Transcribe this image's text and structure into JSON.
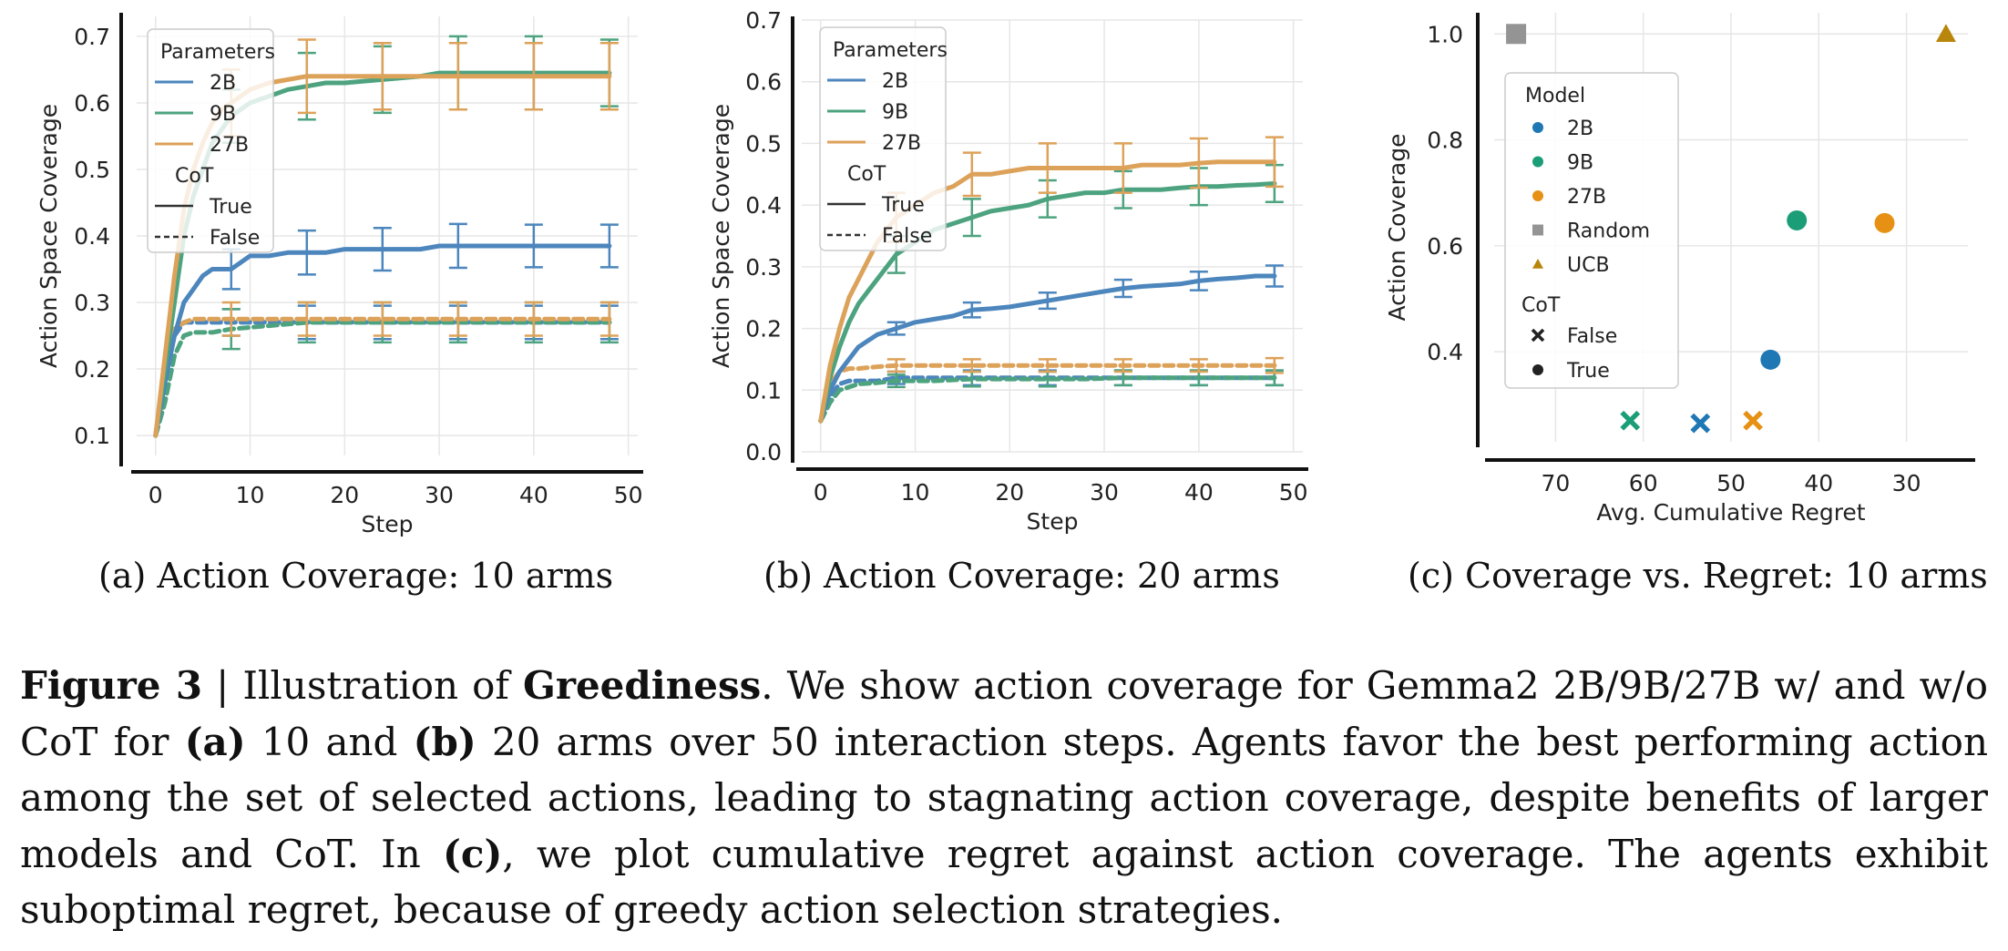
{
  "chart_data": [
    {
      "type": "line",
      "xlabel": "Step",
      "ylabel": "Action Space Coverage",
      "xlim": [
        -2,
        51
      ],
      "ylim": [
        0.07,
        0.73
      ],
      "xticks": [
        0,
        10,
        20,
        30,
        40,
        50
      ],
      "yticks": [
        0.1,
        0.2,
        0.3,
        0.4,
        0.5,
        0.6,
        0.7
      ],
      "grid": true,
      "legend": {
        "placement": "top-left",
        "title1": "Parameters",
        "entries": [
          "2B",
          "9B",
          "27B"
        ],
        "title2": "CoT",
        "styles": [
          "True",
          "False"
        ]
      },
      "series": [
        {
          "name": "2B",
          "cot": "True",
          "color": "#4C86BD",
          "x": [
            0,
            1,
            2,
            3,
            4,
            5,
            6,
            7,
            8,
            10,
            12,
            14,
            16,
            18,
            20,
            24,
            28,
            30,
            32,
            36,
            40,
            44,
            48
          ],
          "y": [
            0.1,
            0.18,
            0.25,
            0.3,
            0.32,
            0.34,
            0.35,
            0.35,
            0.35,
            0.37,
            0.37,
            0.375,
            0.375,
            0.375,
            0.38,
            0.38,
            0.38,
            0.385,
            0.385,
            0.385,
            0.385,
            0.385,
            0.385
          ],
          "errors": [
            0,
            0,
            0,
            0,
            0,
            0,
            0,
            0,
            0.03,
            0,
            0,
            0,
            0.033,
            0,
            0,
            0.032,
            0,
            0,
            0.033,
            0,
            0.032,
            0,
            0.032
          ]
        },
        {
          "name": "9B",
          "cot": "True",
          "color": "#4DA37F",
          "x": [
            0,
            1,
            2,
            3,
            4,
            5,
            6,
            7,
            8,
            10,
            12,
            14,
            16,
            18,
            20,
            24,
            28,
            30,
            32,
            36,
            40,
            44,
            48
          ],
          "y": [
            0.1,
            0.2,
            0.3,
            0.4,
            0.46,
            0.5,
            0.54,
            0.56,
            0.58,
            0.6,
            0.61,
            0.62,
            0.625,
            0.63,
            0.63,
            0.635,
            0.64,
            0.645,
            0.645,
            0.645,
            0.645,
            0.645,
            0.645
          ],
          "errors": [
            0,
            0,
            0,
            0,
            0,
            0,
            0,
            0,
            0.04,
            0,
            0,
            0,
            0.05,
            0,
            0,
            0.05,
            0,
            0,
            0.055,
            0,
            0.055,
            0,
            0.05
          ]
        },
        {
          "name": "27B",
          "cot": "True",
          "color": "#DDA25A",
          "x": [
            0,
            1,
            2,
            3,
            4,
            5,
            6,
            7,
            8,
            10,
            12,
            14,
            16,
            18,
            20,
            24,
            28,
            30,
            32,
            36,
            40,
            44,
            48
          ],
          "y": [
            0.1,
            0.22,
            0.34,
            0.44,
            0.5,
            0.54,
            0.57,
            0.59,
            0.6,
            0.62,
            0.63,
            0.635,
            0.64,
            0.64,
            0.64,
            0.64,
            0.64,
            0.64,
            0.64,
            0.64,
            0.64,
            0.64,
            0.64
          ],
          "errors": [
            0,
            0,
            0,
            0,
            0,
            0,
            0,
            0,
            0.05,
            0,
            0,
            0,
            0.055,
            0,
            0,
            0.05,
            0,
            0,
            0.05,
            0,
            0.05,
            0,
            0.05
          ]
        },
        {
          "name": "2B",
          "cot": "False",
          "color": "#4C86BD",
          "x": [
            0,
            1,
            2,
            3,
            4,
            6,
            8,
            12,
            16,
            20,
            24,
            28,
            32,
            36,
            40,
            44,
            48
          ],
          "y": [
            0.1,
            0.19,
            0.25,
            0.27,
            0.27,
            0.27,
            0.27,
            0.27,
            0.27,
            0.27,
            0.27,
            0.27,
            0.27,
            0.27,
            0.27,
            0.27,
            0.27
          ],
          "errors": [
            0,
            0,
            0,
            0,
            0,
            0,
            0.02,
            0,
            0.025,
            0,
            0.025,
            0,
            0.025,
            0,
            0.025,
            0,
            0.025
          ]
        },
        {
          "name": "9B",
          "cot": "False",
          "color": "#4DA37F",
          "x": [
            0,
            1,
            2,
            3,
            4,
            6,
            8,
            12,
            16,
            20,
            24,
            28,
            32,
            36,
            40,
            44,
            48
          ],
          "y": [
            0.1,
            0.15,
            0.22,
            0.25,
            0.255,
            0.255,
            0.26,
            0.265,
            0.27,
            0.27,
            0.27,
            0.27,
            0.27,
            0.27,
            0.27,
            0.27,
            0.27
          ],
          "errors": [
            0,
            0,
            0,
            0,
            0,
            0,
            0.03,
            0,
            0.03,
            0,
            0.03,
            0,
            0.03,
            0,
            0.03,
            0,
            0.03
          ]
        },
        {
          "name": "27B",
          "cot": "False",
          "color": "#DDA25A",
          "x": [
            0,
            1,
            2,
            3,
            4,
            6,
            8,
            12,
            16,
            20,
            24,
            28,
            32,
            36,
            40,
            44,
            48
          ],
          "y": [
            0.1,
            0.2,
            0.26,
            0.27,
            0.275,
            0.275,
            0.275,
            0.275,
            0.275,
            0.275,
            0.275,
            0.275,
            0.275,
            0.275,
            0.275,
            0.275,
            0.275
          ],
          "errors": [
            0,
            0,
            0,
            0,
            0,
            0,
            0.025,
            0,
            0.025,
            0,
            0.025,
            0,
            0.025,
            0,
            0.025,
            0,
            0.025
          ]
        }
      ]
    },
    {
      "type": "line",
      "xlabel": "Step",
      "ylabel": "Action Space Coverage",
      "xlim": [
        -2,
        51
      ],
      "ylim": [
        0.0,
        0.7
      ],
      "xticks": [
        0,
        10,
        20,
        30,
        40,
        50
      ],
      "yticks": [
        0.0,
        0.1,
        0.2,
        0.3,
        0.4,
        0.5,
        0.6,
        0.7
      ],
      "grid": true,
      "legend": {
        "placement": "top-left",
        "title1": "Parameters",
        "entries": [
          "2B",
          "9B",
          "27B"
        ],
        "title2": "CoT",
        "styles": [
          "True",
          "False"
        ]
      },
      "series": [
        {
          "name": "2B",
          "cot": "True",
          "color": "#4C86BD",
          "x": [
            0,
            1,
            2,
            3,
            4,
            5,
            6,
            7,
            8,
            10,
            12,
            14,
            16,
            18,
            20,
            22,
            24,
            26,
            28,
            30,
            32,
            34,
            36,
            38,
            40,
            42,
            44,
            46,
            48
          ],
          "y": [
            0.05,
            0.1,
            0.13,
            0.15,
            0.17,
            0.18,
            0.19,
            0.195,
            0.2,
            0.21,
            0.215,
            0.22,
            0.23,
            0.232,
            0.235,
            0.24,
            0.245,
            0.25,
            0.255,
            0.26,
            0.265,
            0.268,
            0.27,
            0.272,
            0.277,
            0.28,
            0.282,
            0.285,
            0.285
          ],
          "errors": [
            0,
            0,
            0,
            0,
            0,
            0,
            0,
            0,
            0.01,
            0,
            0,
            0,
            0.012,
            0,
            0,
            0,
            0.013,
            0,
            0,
            0,
            0.014,
            0,
            0,
            0,
            0.015,
            0,
            0,
            0,
            0.017
          ]
        },
        {
          "name": "9B",
          "cot": "True",
          "color": "#4DA37F",
          "x": [
            0,
            1,
            2,
            3,
            4,
            5,
            6,
            7,
            8,
            10,
            12,
            14,
            16,
            18,
            20,
            22,
            24,
            26,
            28,
            30,
            32,
            34,
            36,
            38,
            40,
            42,
            44,
            46,
            48
          ],
          "y": [
            0.05,
            0.12,
            0.17,
            0.21,
            0.24,
            0.26,
            0.28,
            0.3,
            0.32,
            0.34,
            0.36,
            0.37,
            0.38,
            0.39,
            0.395,
            0.4,
            0.41,
            0.415,
            0.42,
            0.42,
            0.425,
            0.425,
            0.425,
            0.428,
            0.43,
            0.43,
            0.432,
            0.433,
            0.435
          ],
          "errors": [
            0,
            0,
            0,
            0,
            0,
            0,
            0,
            0,
            0.03,
            0,
            0,
            0,
            0.03,
            0,
            0,
            0,
            0.03,
            0,
            0,
            0,
            0.03,
            0,
            0,
            0,
            0.03,
            0,
            0,
            0,
            0.03
          ]
        },
        {
          "name": "27B",
          "cot": "True",
          "color": "#DDA25A",
          "x": [
            0,
            1,
            2,
            3,
            4,
            5,
            6,
            7,
            8,
            10,
            12,
            14,
            16,
            18,
            20,
            22,
            24,
            26,
            28,
            30,
            32,
            34,
            36,
            38,
            40,
            42,
            44,
            46,
            48
          ],
          "y": [
            0.05,
            0.14,
            0.2,
            0.25,
            0.28,
            0.31,
            0.34,
            0.36,
            0.38,
            0.4,
            0.42,
            0.43,
            0.45,
            0.45,
            0.455,
            0.46,
            0.46,
            0.46,
            0.46,
            0.46,
            0.46,
            0.465,
            0.465,
            0.465,
            0.468,
            0.47,
            0.47,
            0.47,
            0.47
          ],
          "errors": [
            0,
            0,
            0,
            0,
            0,
            0,
            0,
            0,
            0.04,
            0,
            0,
            0,
            0.035,
            0,
            0,
            0,
            0.04,
            0,
            0,
            0,
            0.04,
            0,
            0,
            0,
            0.04,
            0,
            0,
            0,
            0.04
          ]
        },
        {
          "name": "2B",
          "cot": "False",
          "color": "#4C86BD",
          "x": [
            0,
            1,
            2,
            3,
            4,
            6,
            8,
            12,
            16,
            20,
            24,
            28,
            32,
            36,
            40,
            44,
            48
          ],
          "y": [
            0.05,
            0.09,
            0.11,
            0.115,
            0.115,
            0.115,
            0.12,
            0.12,
            0.12,
            0.12,
            0.12,
            0.12,
            0.12,
            0.12,
            0.12,
            0.12,
            0.12
          ],
          "errors": [
            0,
            0,
            0,
            0,
            0,
            0,
            0.01,
            0,
            0.012,
            0,
            0.012,
            0,
            0.012,
            0,
            0.012,
            0,
            0.012
          ]
        },
        {
          "name": "9B",
          "cot": "False",
          "color": "#4DA37F",
          "x": [
            0,
            1,
            2,
            3,
            4,
            6,
            8,
            12,
            16,
            20,
            24,
            28,
            32,
            36,
            40,
            44,
            48
          ],
          "y": [
            0.05,
            0.08,
            0.1,
            0.105,
            0.11,
            0.112,
            0.115,
            0.115,
            0.118,
            0.118,
            0.118,
            0.118,
            0.12,
            0.12,
            0.12,
            0.12,
            0.12
          ],
          "errors": [
            0,
            0,
            0,
            0,
            0,
            0,
            0.01,
            0,
            0.012,
            0,
            0.012,
            0,
            0.012,
            0,
            0.012,
            0,
            0.012
          ]
        },
        {
          "name": "27B",
          "cot": "False",
          "color": "#DDA25A",
          "x": [
            0,
            1,
            2,
            3,
            4,
            6,
            8,
            12,
            16,
            20,
            24,
            28,
            32,
            36,
            40,
            44,
            48
          ],
          "y": [
            0.05,
            0.11,
            0.13,
            0.135,
            0.135,
            0.138,
            0.14,
            0.14,
            0.14,
            0.14,
            0.14,
            0.14,
            0.14,
            0.14,
            0.14,
            0.14,
            0.14
          ],
          "errors": [
            0,
            0,
            0,
            0,
            0,
            0,
            0.01,
            0,
            0.01,
            0,
            0.01,
            0,
            0.01,
            0,
            0.01,
            0,
            0.012
          ]
        }
      ]
    },
    {
      "type": "scatter",
      "xlabel": "Avg. Cumulative Regret",
      "ylabel": "Action Coverage",
      "x_reversed": true,
      "xlim": [
        77,
        23
      ],
      "ylim": [
        0.23,
        1.04
      ],
      "xticks": [
        70,
        60,
        50,
        40,
        30
      ],
      "yticks": [
        0.4,
        0.6,
        0.8,
        1.0
      ],
      "grid": true,
      "legend": {
        "placement": "top-left",
        "title1": "Model",
        "entries": [
          "2B",
          "9B",
          "27B",
          "Random",
          "UCB"
        ],
        "title2": "CoT",
        "styles": [
          "False",
          "True"
        ]
      },
      "points": [
        {
          "model": "Random",
          "cot": "",
          "marker": "square",
          "color": "#949494",
          "x": 74.5,
          "y": 1.0
        },
        {
          "model": "UCB",
          "cot": "",
          "marker": "triangle",
          "color": "#B8860B",
          "x": 25.5,
          "y": 1.0
        },
        {
          "model": "9B",
          "cot": "True",
          "marker": "circle",
          "color": "#1B9E77",
          "x": 42.5,
          "y": 0.648
        },
        {
          "model": "27B",
          "cot": "True",
          "marker": "circle",
          "color": "#E69113",
          "x": 32.5,
          "y": 0.643
        },
        {
          "model": "2B",
          "cot": "True",
          "marker": "circle",
          "color": "#1F77B4",
          "x": 45.5,
          "y": 0.385
        },
        {
          "model": "9B",
          "cot": "False",
          "marker": "x",
          "color": "#1B9E77",
          "x": 61.5,
          "y": 0.27
        },
        {
          "model": "2B",
          "cot": "False",
          "marker": "x",
          "color": "#1F77B4",
          "x": 53.5,
          "y": 0.265
        },
        {
          "model": "27B",
          "cot": "False",
          "marker": "x",
          "color": "#E69113",
          "x": 47.5,
          "y": 0.27
        }
      ]
    }
  ],
  "subcaptions": {
    "a": "(a) Action Coverage: 10 arms",
    "b": "(b) Action Coverage: 20 arms",
    "c": "(c) Coverage vs. Regret: 10 arms"
  },
  "caption": {
    "label": "Figure 3",
    "sep": " | Illustration of ",
    "keyword": "Greediness",
    "t1": ". We show action coverage for Gemma2 2B/9B/27B w/ and w/o CoT for ",
    "ref_a": "(a)",
    "t2": " 10 and ",
    "ref_b": "(b)",
    "t3": " 20 arms over 50 interaction steps. Agents favor the best performing action among the set of selected actions, leading to stagnating action coverage, despite benefits of larger models and CoT. In ",
    "ref_c": "(c)",
    "t4": ", we plot cumulative regret against action coverage. The agents exhibit suboptimal regret, because of greedy action selection strategies."
  }
}
